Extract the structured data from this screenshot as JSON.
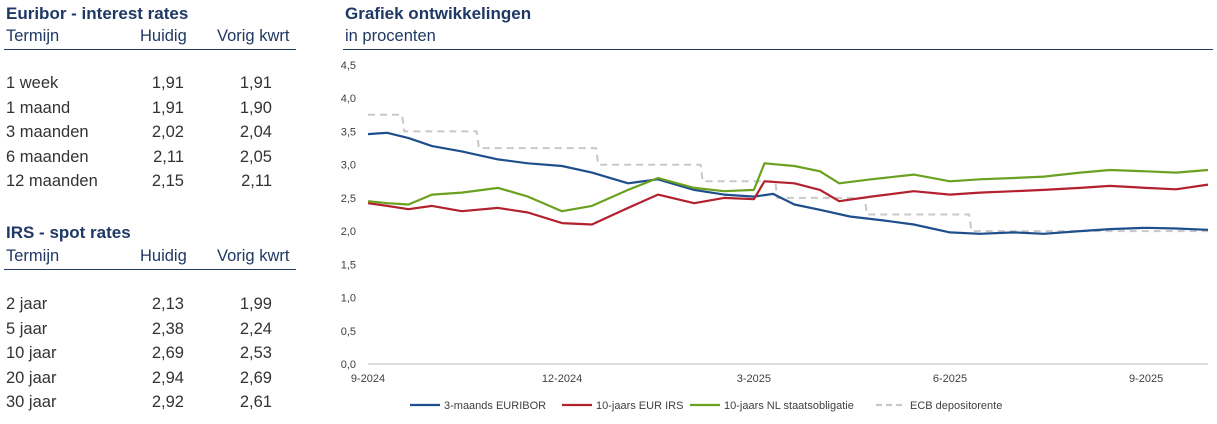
{
  "euribor": {
    "title": "Euribor - interest rates",
    "headers": {
      "term": "Termijn",
      "current": "Huidig",
      "previous": "Vorig kwrt"
    },
    "rows": [
      {
        "term": "1 week",
        "current": "1,91",
        "previous": "1,91"
      },
      {
        "term": "1 maand",
        "current": "1,91",
        "previous": "1,90"
      },
      {
        "term": "3 maanden",
        "current": "2,02",
        "previous": "2,04"
      },
      {
        "term": "6 maanden",
        "current": "2,11",
        "previous": "2,05"
      },
      {
        "term": "12 maanden",
        "current": "2,15",
        "previous": "2,11"
      }
    ]
  },
  "irs": {
    "title": "IRS - spot rates",
    "headers": {
      "term": "Termijn",
      "current": "Huidig",
      "previous": "Vorig kwrt"
    },
    "rows": [
      {
        "term": "2 jaar",
        "current": "2,13",
        "previous": "1,99"
      },
      {
        "term": "5 jaar",
        "current": "2,38",
        "previous": "2,24"
      },
      {
        "term": "10 jaar",
        "current": "2,69",
        "previous": "2,53"
      },
      {
        "term": "20 jaar",
        "current": "2,94",
        "previous": "2,69"
      },
      {
        "term": "30 jaar",
        "current": "2,92",
        "previous": "2,61"
      }
    ]
  },
  "chart_title": "Grafiek ontwikkelingen",
  "chart_subtitle": "in procenten",
  "chart_data": {
    "type": "line",
    "xlim": [
      "2024-09-01",
      "2025-09-30"
    ],
    "ylim": [
      0,
      4.5
    ],
    "yticks": [
      "0,0",
      "0,5",
      "1,0",
      "1,5",
      "2,0",
      "2,5",
      "3,0",
      "3,5",
      "4,0",
      "4,5"
    ],
    "xticks": [
      {
        "date": "2024-09-01",
        "label": "9-2024"
      },
      {
        "date": "2024-12-01",
        "label": "12-2024"
      },
      {
        "date": "2025-03-01",
        "label": "3-2025"
      },
      {
        "date": "2025-06-01",
        "label": "6-2025"
      },
      {
        "date": "2025-09-01",
        "label": "9-2025"
      }
    ],
    "grid": false,
    "legend": "bottom",
    "series": [
      {
        "name": "3-maands EURIBOR",
        "color": "#1f4e8c",
        "dash": false,
        "points": [
          [
            "2024-09-01",
            3.46
          ],
          [
            "2024-09-10",
            3.48
          ],
          [
            "2024-09-20",
            3.4
          ],
          [
            "2024-10-01",
            3.28
          ],
          [
            "2024-10-15",
            3.2
          ],
          [
            "2024-11-01",
            3.08
          ],
          [
            "2024-11-15",
            3.02
          ],
          [
            "2024-12-01",
            2.98
          ],
          [
            "2024-12-15",
            2.88
          ],
          [
            "2025-01-01",
            2.72
          ],
          [
            "2025-01-15",
            2.78
          ],
          [
            "2025-02-01",
            2.62
          ],
          [
            "2025-02-15",
            2.55
          ],
          [
            "2025-03-01",
            2.52
          ],
          [
            "2025-03-10",
            2.56
          ],
          [
            "2025-03-20",
            2.4
          ],
          [
            "2025-04-01",
            2.32
          ],
          [
            "2025-04-15",
            2.22
          ],
          [
            "2025-05-01",
            2.16
          ],
          [
            "2025-05-15",
            2.1
          ],
          [
            "2025-06-01",
            1.98
          ],
          [
            "2025-06-15",
            1.96
          ],
          [
            "2025-07-01",
            1.98
          ],
          [
            "2025-07-15",
            1.96
          ],
          [
            "2025-08-01",
            2.0
          ],
          [
            "2025-08-15",
            2.03
          ],
          [
            "2025-09-01",
            2.05
          ],
          [
            "2025-09-15",
            2.04
          ],
          [
            "2025-09-30",
            2.02
          ]
        ]
      },
      {
        "name": "10-jaars EUR IRS",
        "color": "#b3202e",
        "dash": false,
        "points": [
          [
            "2024-09-01",
            2.42
          ],
          [
            "2024-09-10",
            2.38
          ],
          [
            "2024-09-20",
            2.33
          ],
          [
            "2024-10-01",
            2.38
          ],
          [
            "2024-10-15",
            2.3
          ],
          [
            "2024-11-01",
            2.35
          ],
          [
            "2024-11-15",
            2.28
          ],
          [
            "2024-12-01",
            2.12
          ],
          [
            "2024-12-15",
            2.1
          ],
          [
            "2025-01-01",
            2.35
          ],
          [
            "2025-01-15",
            2.55
          ],
          [
            "2025-02-01",
            2.42
          ],
          [
            "2025-02-15",
            2.5
          ],
          [
            "2025-03-01",
            2.48
          ],
          [
            "2025-03-06",
            2.75
          ],
          [
            "2025-03-20",
            2.72
          ],
          [
            "2025-04-01",
            2.62
          ],
          [
            "2025-04-10",
            2.45
          ],
          [
            "2025-04-25",
            2.52
          ],
          [
            "2025-05-15",
            2.6
          ],
          [
            "2025-06-01",
            2.55
          ],
          [
            "2025-06-15",
            2.58
          ],
          [
            "2025-07-01",
            2.6
          ],
          [
            "2025-07-15",
            2.62
          ],
          [
            "2025-08-01",
            2.65
          ],
          [
            "2025-08-15",
            2.68
          ],
          [
            "2025-09-01",
            2.65
          ],
          [
            "2025-09-15",
            2.63
          ],
          [
            "2025-09-30",
            2.7
          ]
        ]
      },
      {
        "name": "10-jaars NL staatsobligatie",
        "color": "#6aa121",
        "dash": false,
        "points": [
          [
            "2024-09-01",
            2.45
          ],
          [
            "2024-09-10",
            2.42
          ],
          [
            "2024-09-20",
            2.4
          ],
          [
            "2024-10-01",
            2.55
          ],
          [
            "2024-10-15",
            2.58
          ],
          [
            "2024-11-01",
            2.65
          ],
          [
            "2024-11-15",
            2.52
          ],
          [
            "2024-12-01",
            2.3
          ],
          [
            "2024-12-15",
            2.38
          ],
          [
            "2025-01-01",
            2.62
          ],
          [
            "2025-01-15",
            2.8
          ],
          [
            "2025-02-01",
            2.65
          ],
          [
            "2025-02-15",
            2.6
          ],
          [
            "2025-03-01",
            2.62
          ],
          [
            "2025-03-06",
            3.02
          ],
          [
            "2025-03-20",
            2.98
          ],
          [
            "2025-04-01",
            2.9
          ],
          [
            "2025-04-10",
            2.72
          ],
          [
            "2025-04-25",
            2.78
          ],
          [
            "2025-05-15",
            2.85
          ],
          [
            "2025-06-01",
            2.75
          ],
          [
            "2025-06-15",
            2.78
          ],
          [
            "2025-07-01",
            2.8
          ],
          [
            "2025-07-15",
            2.82
          ],
          [
            "2025-08-01",
            2.88
          ],
          [
            "2025-08-15",
            2.92
          ],
          [
            "2025-09-01",
            2.9
          ],
          [
            "2025-09-15",
            2.88
          ],
          [
            "2025-09-30",
            2.92
          ]
        ]
      },
      {
        "name": "ECB depositorente",
        "color": "#c8c8c8",
        "dash": true,
        "points": [
          [
            "2024-09-01",
            3.75
          ],
          [
            "2024-09-17",
            3.75
          ],
          [
            "2024-09-18",
            3.5
          ],
          [
            "2024-10-22",
            3.5
          ],
          [
            "2024-10-23",
            3.25
          ],
          [
            "2024-12-17",
            3.25
          ],
          [
            "2024-12-18",
            3.0
          ],
          [
            "2025-02-04",
            3.0
          ],
          [
            "2025-02-05",
            2.75
          ],
          [
            "2025-03-11",
            2.75
          ],
          [
            "2025-03-12",
            2.5
          ],
          [
            "2025-04-22",
            2.5
          ],
          [
            "2025-04-23",
            2.25
          ],
          [
            "2025-06-10",
            2.25
          ],
          [
            "2025-06-11",
            2.0
          ],
          [
            "2025-09-30",
            2.0
          ]
        ]
      }
    ]
  }
}
